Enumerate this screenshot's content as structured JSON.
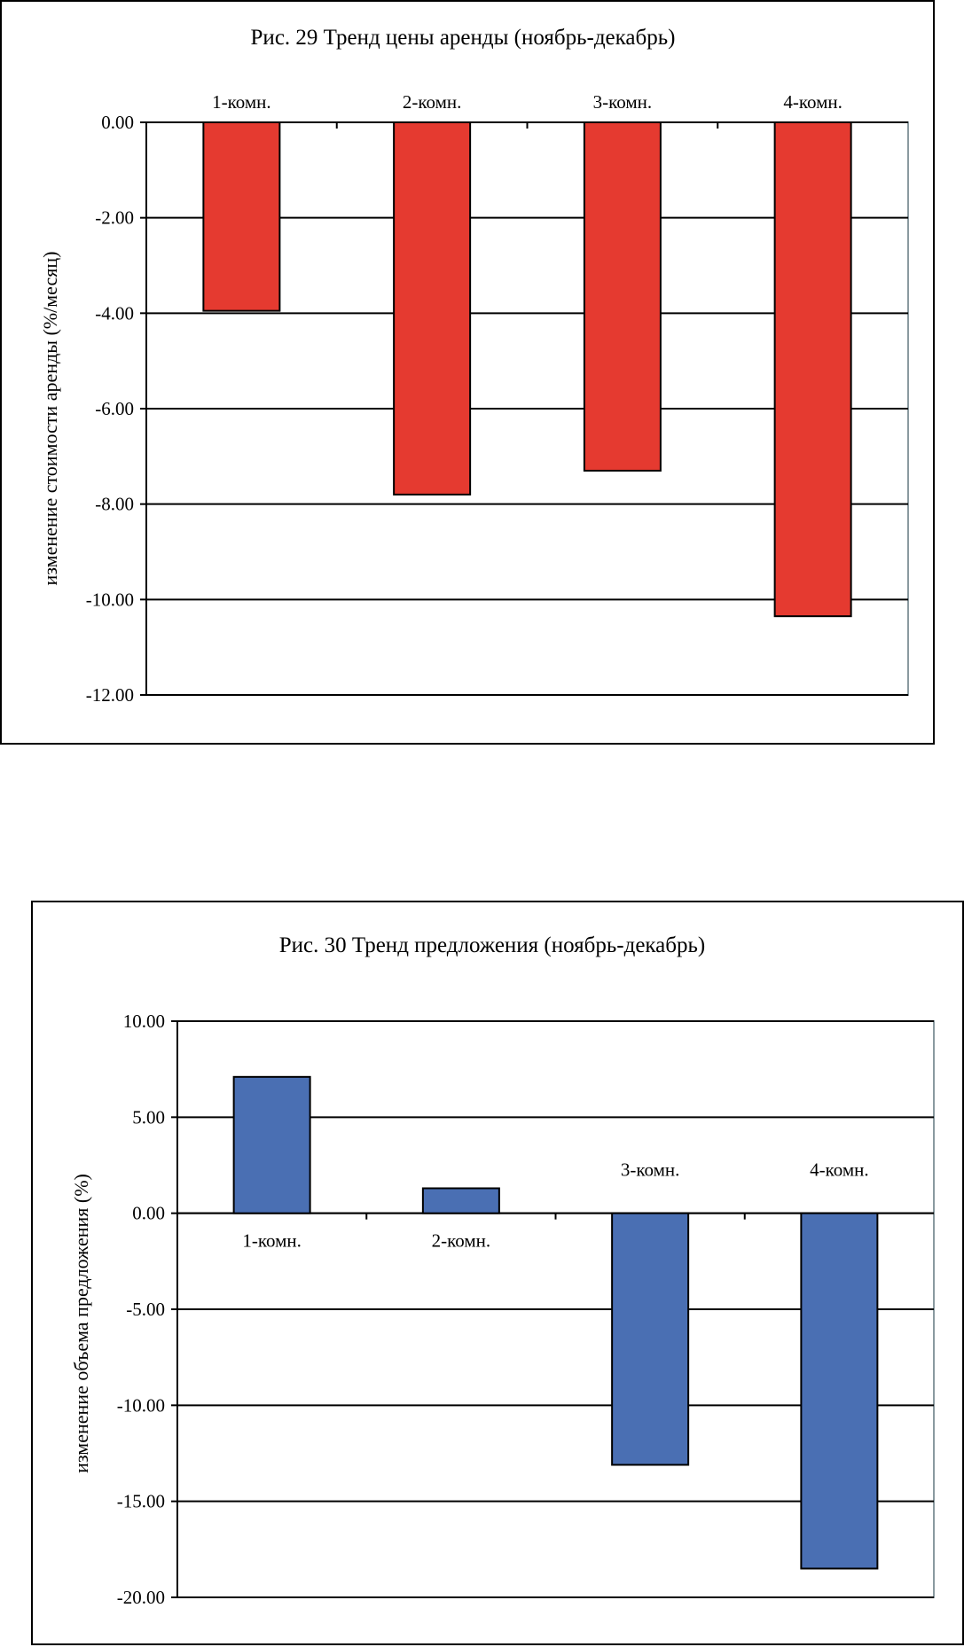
{
  "chart_data": [
    {
      "type": "bar",
      "title": "Рис. 29 Тренд цены аренды (ноябрь-декабрь)",
      "xlabel": "",
      "ylabel": "изменение стоимости аренды (%/месяц)",
      "categories": [
        "1-комн.",
        "2-комн.",
        "3-комн.",
        "4-комн."
      ],
      "values": [
        -3.95,
        -7.8,
        -7.3,
        -10.35
      ],
      "ylim": [
        -12,
        0
      ],
      "yticks": [
        "0.00",
        "-2.00",
        "-4.00",
        "-6.00",
        "-8.00",
        "-10.00",
        "-12.00"
      ],
      "tick_values": [
        0,
        -2,
        -4,
        -6,
        -8,
        -10,
        -12
      ],
      "grid": true,
      "bar_color": "#e53a30",
      "label_position": "top"
    },
    {
      "type": "bar",
      "title": "Рис. 30 Тренд предложения (ноябрь-декабрь)",
      "xlabel": "",
      "ylabel": "изменение объема предложения (%)",
      "categories": [
        "1-комн.",
        "2-комн.",
        "3-комн.",
        "4-комн."
      ],
      "values": [
        7.1,
        1.3,
        -13.1,
        -18.5
      ],
      "ylim": [
        -20,
        10
      ],
      "yticks": [
        "10.00",
        "5.00",
        "0.00",
        "-5.00",
        "-10.00",
        "-15.00",
        "-20.00"
      ],
      "tick_values": [
        10,
        5,
        0,
        -5,
        -10,
        -15,
        -20
      ],
      "grid": true,
      "bar_color": "#4a6fb3",
      "label_position": "opposite"
    }
  ]
}
